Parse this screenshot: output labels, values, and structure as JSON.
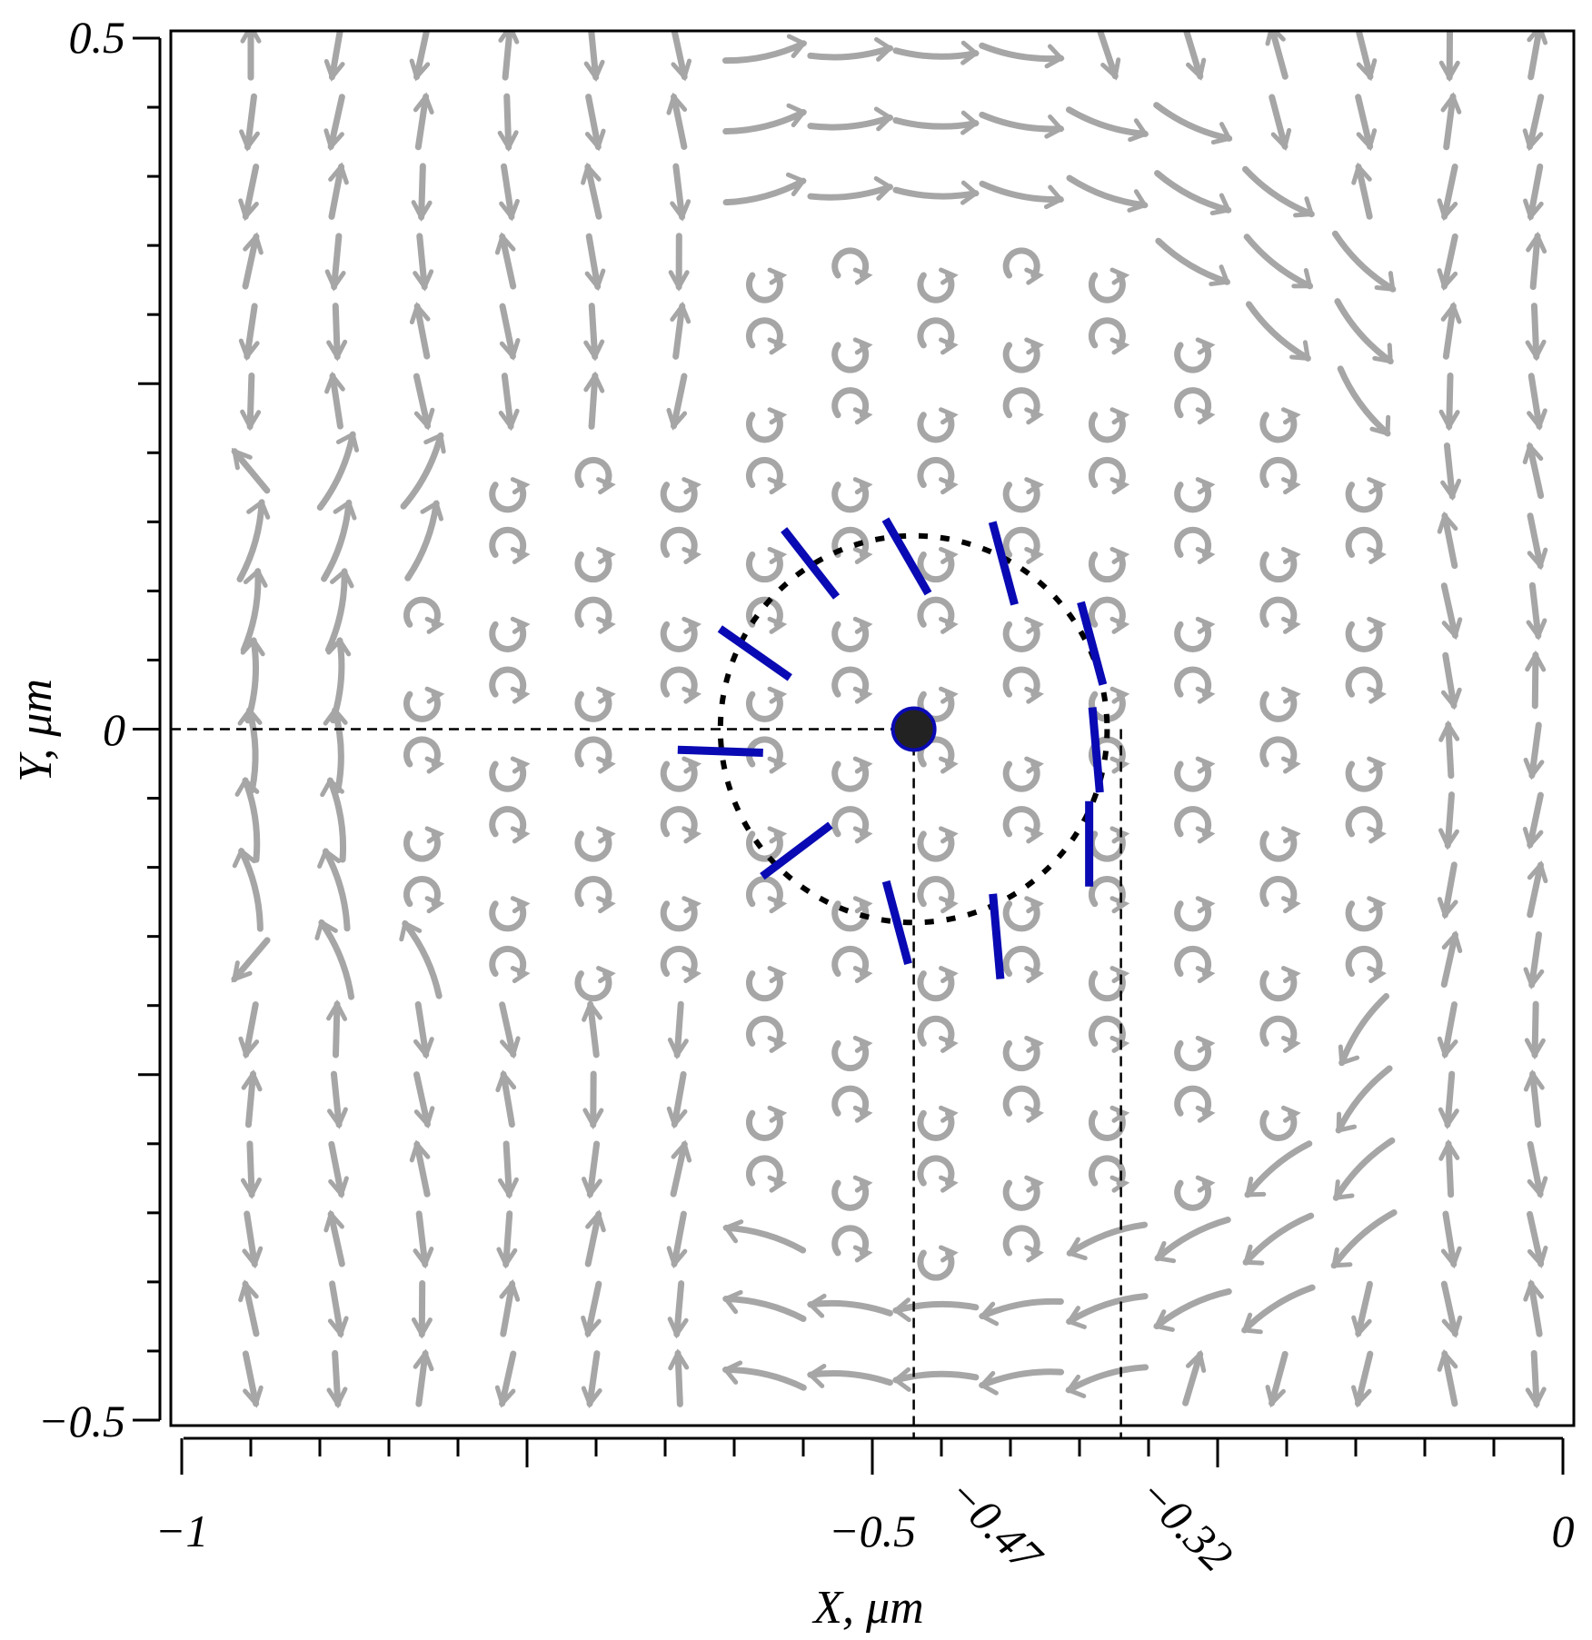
{
  "chart_data": {
    "type": "vector-field",
    "title": "",
    "xlabel": "X, μm",
    "ylabel": "Y, μm",
    "xlim": [
      -1,
      0
    ],
    "ylim": [
      -0.5,
      0.5
    ],
    "x_ticks": [
      {
        "value": -1,
        "label": "−1"
      },
      {
        "value": -0.5,
        "label": "−0.5"
      },
      {
        "value": 0,
        "label": "0"
      }
    ],
    "x_marked": [
      {
        "value": -0.47,
        "label": "−0.47"
      },
      {
        "value": -0.32,
        "label": "−0.32"
      }
    ],
    "y_ticks": [
      {
        "value": 0.5,
        "label": "0.5"
      },
      {
        "value": 0,
        "label": "0"
      },
      {
        "value": -0.5,
        "label": "−0.5"
      }
    ],
    "field_grid": {
      "nx": 16,
      "ny": 20,
      "x_range": [
        -0.95,
        -0.02
      ],
      "y_range": [
        -0.47,
        0.49
      ]
    },
    "center": {
      "x": -0.47,
      "y": 0
    },
    "circle_radius": 0.14,
    "circle_style": "dotted",
    "blue_segments": [
      {
        "x": -0.61,
        "y": -0.016,
        "angle_deg": 178
      },
      {
        "x": -0.585,
        "y": 0.055,
        "angle_deg": 145
      },
      {
        "x": -0.545,
        "y": 0.12,
        "angle_deg": 128
      },
      {
        "x": -0.475,
        "y": 0.125,
        "angle_deg": 120
      },
      {
        "x": -0.405,
        "y": 0.12,
        "angle_deg": 105
      },
      {
        "x": -0.341,
        "y": 0.062,
        "angle_deg": 105
      },
      {
        "x": -0.338,
        "y": -0.015,
        "angle_deg": 95
      },
      {
        "x": -0.343,
        "y": -0.083,
        "angle_deg": 90
      },
      {
        "x": -0.41,
        "y": -0.15,
        "angle_deg": 95
      },
      {
        "x": -0.482,
        "y": -0.14,
        "angle_deg": 105
      },
      {
        "x": -0.555,
        "y": -0.088,
        "angle_deg": 217
      }
    ],
    "colors": {
      "field": "#a6a6a6",
      "segments": "#0a0ab4",
      "center": "#222222",
      "guides": "#000000"
    },
    "grid": false
  }
}
